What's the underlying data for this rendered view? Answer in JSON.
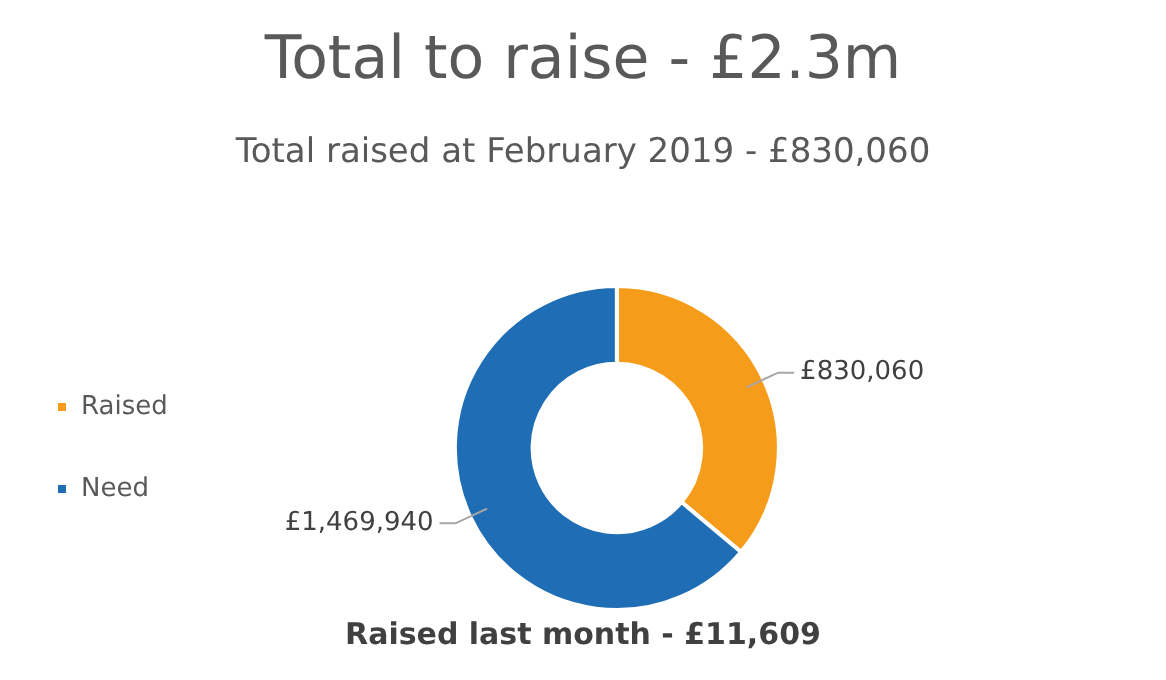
{
  "chart_data": {
    "type": "donut",
    "title": "Total to raise - £2.3m",
    "subtitle": "Total raised at February 2019 - £830,060",
    "categories": [
      "Raised",
      "Need"
    ],
    "values": [
      830060,
      1469940
    ],
    "colors": [
      "#f59c1a",
      "#1f6db5"
    ],
    "value_labels": [
      "£830,060",
      "£1,469,940"
    ],
    "legend": "left",
    "annotations": [
      "Raised last month - £11,609"
    ]
  }
}
